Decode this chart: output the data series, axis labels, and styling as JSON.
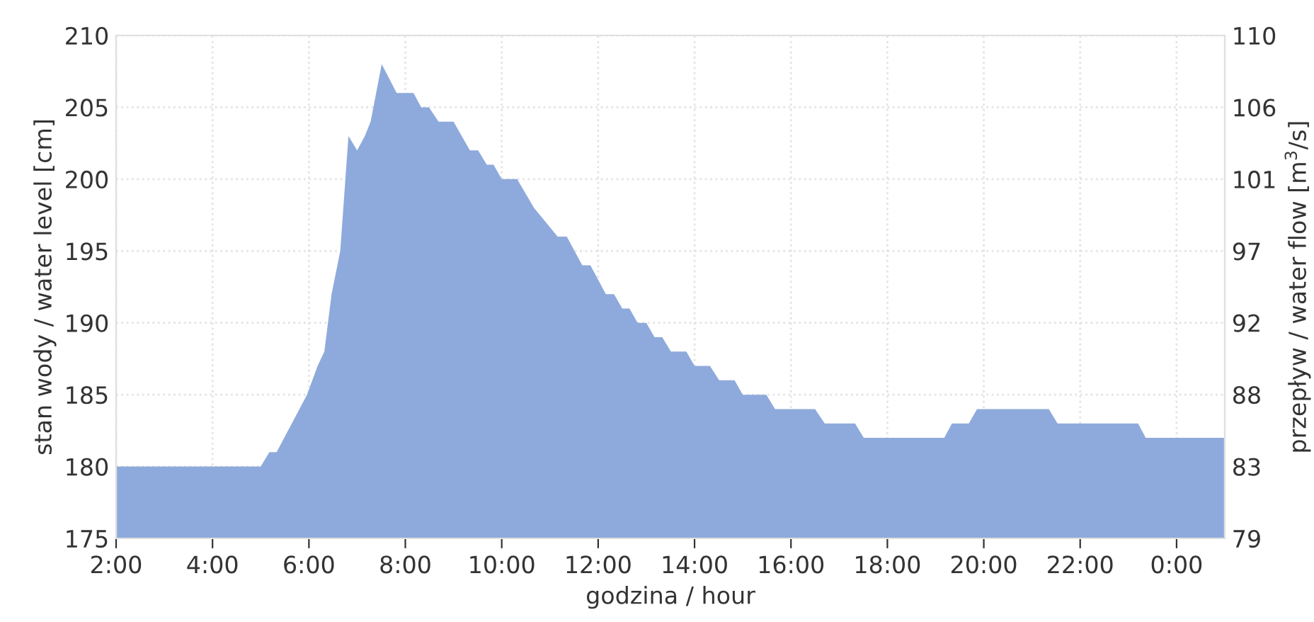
{
  "chart_data": {
    "type": "area",
    "xlabel": "godzina / hour",
    "ylabel": "stan wody / water level [cm]",
    "y2label": "przepływ / water flow [m$^{3}$/s]",
    "x": [
      2.0,
      5.0,
      5.18,
      5.33,
      5.96,
      6.18,
      6.32,
      6.47,
      6.65,
      6.82,
      7.0,
      7.16,
      7.28,
      7.51,
      7.82,
      8.17,
      8.33,
      8.49,
      8.69,
      9.0,
      9.34,
      9.51,
      9.69,
      9.83,
      10.0,
      10.32,
      10.67,
      11.16,
      11.35,
      11.67,
      11.84,
      12.16,
      12.33,
      12.5,
      12.65,
      12.82,
      13.0,
      13.17,
      13.33,
      13.51,
      13.83,
      14.0,
      14.32,
      14.51,
      14.83,
      15.0,
      15.49,
      15.67,
      16.5,
      16.7,
      17.33,
      17.51,
      19.18,
      19.34,
      19.69,
      19.86,
      21.35,
      21.53,
      23.2,
      23.36,
      25.0
    ],
    "series": [
      {
        "color": "#8eaadc",
        "values": [
          180,
          180,
          181,
          181,
          185,
          187,
          188,
          192,
          195,
          203,
          202,
          203,
          204,
          208,
          206,
          206,
          205,
          205,
          204,
          204,
          202,
          202,
          201,
          201,
          200,
          200,
          198,
          196,
          196,
          194,
          194,
          192,
          192,
          191,
          191,
          190,
          190,
          189,
          189,
          188,
          188,
          187,
          187,
          186,
          186,
          185,
          185,
          184,
          184,
          183,
          183,
          182,
          182,
          183,
          183,
          184,
          184,
          183,
          183,
          182,
          182
        ]
      }
    ],
    "xlim": [
      2,
      25
    ],
    "xticks": [
      {
        "value": 2,
        "label": "2:00"
      },
      {
        "value": 4,
        "label": "4:00"
      },
      {
        "value": 6,
        "label": "6:00"
      },
      {
        "value": 8,
        "label": "8:00"
      },
      {
        "value": 10,
        "label": "10:00"
      },
      {
        "value": 12,
        "label": "12:00"
      },
      {
        "value": 14,
        "label": "14:00"
      },
      {
        "value": 16,
        "label": "16:00"
      },
      {
        "value": 18,
        "label": "18:00"
      },
      {
        "value": 20,
        "label": "20:00"
      },
      {
        "value": 22,
        "label": "22:00"
      },
      {
        "value": 24,
        "label": "0:00"
      }
    ],
    "ylim": [
      175,
      210
    ],
    "yticks": [
      175,
      180,
      185,
      190,
      195,
      200,
      205,
      210
    ],
    "y2lim": [
      79,
      110
    ],
    "y2ticks": [
      79,
      {
        "value": 83.43,
        "label": "83"
      },
      {
        "value": 87.86,
        "label": "88"
      },
      {
        "value": 92.29,
        "label": "92"
      },
      {
        "value": 96.71,
        "label": "97"
      },
      {
        "value": 101.14,
        "label": "101"
      },
      {
        "value": 105.57,
        "label": "106"
      },
      110
    ],
    "grid": true,
    "legend": false
  }
}
